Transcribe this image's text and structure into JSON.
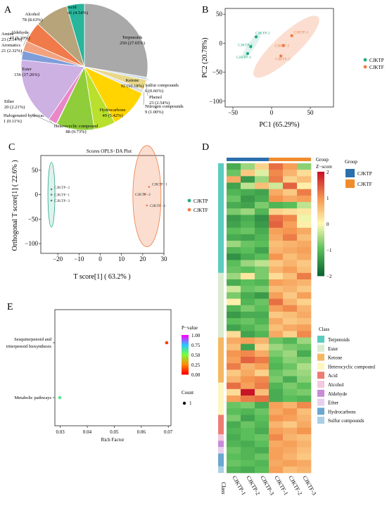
{
  "chart_data": [
    {
      "panel": "A",
      "type": "pie",
      "title": "",
      "slices": [
        {
          "label": "Terpenoids",
          "value_label": "250 (27.65%)",
          "value": 27.65,
          "color": "#a9a9a9"
        },
        {
          "label": "Sulfur compounds",
          "value_label": "6 (0.66%)",
          "value": 0.66,
          "color": "#c9dbe6"
        },
        {
          "label": "Phenol",
          "value_label": "23 (2.54%)",
          "value": 2.54,
          "color": "#e8d88a"
        },
        {
          "label": "Nitrogen compounds",
          "value_label": "9 (1.00%)",
          "value": 1.0,
          "color": "#e0e0e0"
        },
        {
          "label": "Ketone",
          "value_label": "92 (10.18%)",
          "value": 10.18,
          "color": "#ffd400"
        },
        {
          "label": "Hydrocarbons",
          "value_label": "49 (5.42%)",
          "value": 5.42,
          "color": "#b8e02c"
        },
        {
          "label": "Heterocyclic compound",
          "value_label": "88 (9.73%)",
          "value": 9.73,
          "color": "#8fcd3a"
        },
        {
          "label": "Halogenated hydrocarbons",
          "value_label": "1 (0.11%)",
          "value": 0.11,
          "color": "#6f8fa8"
        },
        {
          "label": "Ether",
          "value_label": "20 (2.21%)",
          "value": 2.21,
          "color": "#e987c8"
        },
        {
          "label": "Ester",
          "value_label": "156 (17.26%)",
          "value": 17.26,
          "color": "#cdb1e3"
        },
        {
          "label": "Aromatics",
          "value_label": "21 (2.32%)",
          "value": 2.32,
          "color": "#7f9dd9"
        },
        {
          "label": "Amine",
          "value_label": "23 (2.54%)",
          "value": 2.54,
          "color": "#f2a27e"
        },
        {
          "label": "Aldehyde",
          "value_label": "47 (5.20%)",
          "value": 5.2,
          "color": "#f07a4a"
        },
        {
          "label": "Alcohol",
          "value_label": "78 (8.63%)",
          "value": 8.63,
          "color": "#b7a47a"
        },
        {
          "label": "Acid",
          "value_label": "41 (4.54%)",
          "value": 4.54,
          "color": "#27b59c"
        }
      ]
    },
    {
      "panel": "B",
      "type": "scatter",
      "xlabel": "PC1 (65.29%)",
      "ylabel": "PC2 (20.78%)",
      "xlim": [
        -60,
        80
      ],
      "ylim": [
        -110,
        60
      ],
      "xticks": [
        -50,
        0,
        50
      ],
      "yticks": [
        50,
        0,
        -50,
        -100
      ],
      "series": [
        {
          "name": "CJKTP",
          "color": "#26a884",
          "points": [
            {
              "label": "CJKTP-1",
              "x": -27,
              "y": -6
            },
            {
              "label": "CJKTP-2",
              "x": -20,
              "y": 11
            },
            {
              "label": "CJKTP-3",
              "x": -31,
              "y": -18
            }
          ]
        },
        {
          "name": "CJKTF",
          "color": "#ee7d45",
          "points": [
            {
              "label": "CJKTF-1",
              "x": 26,
              "y": 13
            },
            {
              "label": "CJKTF-2",
              "x": 15,
              "y": -4
            },
            {
              "label": "CJKTF-3",
              "x": 12,
              "y": -22
            }
          ]
        }
      ]
    },
    {
      "panel": "C",
      "type": "scatter",
      "title": "Scores OPLS−DA Plot",
      "xlabel": "T score[1] ( 63.2% )",
      "ylabel": "Orthogonal T score[1] ( 22.6% )",
      "xlim": [
        -28,
        30
      ],
      "ylim": [
        -120,
        80
      ],
      "xticks": [
        -20,
        -10,
        0,
        10,
        20,
        30
      ],
      "yticks": [
        50,
        0,
        -50,
        -100
      ],
      "series": [
        {
          "name": "CJKTP",
          "color": "#26a884",
          "points": [
            {
              "label": "CJKTP−2",
              "x": -23,
              "y": 11
            },
            {
              "label": "CJKTP−1",
              "x": -23,
              "y": 0
            },
            {
              "label": "CJKTP−3",
              "x": -23,
              "y": -12
            }
          ]
        },
        {
          "name": "CJKTF",
          "color": "#ee7d45",
          "points": [
            {
              "label": "CJKTF−1",
              "x": 23,
              "y": 16
            },
            {
              "label": "CJKTF−2",
              "x": 21,
              "y": 1
            },
            {
              "label": "CJKTF−3",
              "x": 22,
              "y": -22
            }
          ]
        }
      ]
    },
    {
      "panel": "D",
      "type": "heatmap",
      "columns": [
        "CJKTP-1",
        "CJKTP-2",
        "CJKTP-3",
        "CJKTF-1",
        "CJKTF-2",
        "CJKTF-3"
      ],
      "column_axis_label": "Class",
      "group_title": "Group",
      "group_legend": [
        {
          "name": "CJKTP",
          "color": "#2a6fae"
        },
        {
          "name": "CJKTF",
          "color": "#f08c2b"
        }
      ],
      "zscore_title": "Z−score",
      "zscore_ticks": [
        "2",
        "1",
        "0",
        "−1",
        "−2"
      ],
      "class_title": "Class",
      "classes": [
        {
          "name": "Terpenoids",
          "color": "#5ccbc0",
          "rows": 17
        },
        {
          "name": "Ester",
          "color": "#d9ecd0",
          "rows": 10
        },
        {
          "name": "Ketone",
          "color": "#f5b862",
          "rows": 7
        },
        {
          "name": "Heterocyclic compound",
          "color": "#fdf6c0",
          "rows": 5
        },
        {
          "name": "Acid",
          "color": "#ee7c74",
          "rows": 3
        },
        {
          "name": "Alcohol",
          "color": "#f2c9dd",
          "rows": 1
        },
        {
          "name": "Aldehyde",
          "color": "#c98bd8",
          "rows": 1
        },
        {
          "name": "Ether",
          "color": "#e8d0ee",
          "rows": 1
        },
        {
          "name": "Hydrocarbons",
          "color": "#6aa8cf",
          "rows": 2
        },
        {
          "name": "Sulfur compounds",
          "color": "#aacfe6",
          "rows": 1
        }
      ],
      "values": [
        [
          -1.2,
          -0.6,
          0.4,
          1.3,
          0.9,
          -0.7
        ],
        [
          -0.9,
          0.5,
          -0.2,
          1.1,
          0.7,
          0.3
        ],
        [
          0.8,
          -1.4,
          -0.6,
          1.2,
          0.4,
          0.6
        ],
        [
          -1.3,
          -0.4,
          0.6,
          -0.3,
          1.4,
          0.1
        ],
        [
          -1.1,
          -1.2,
          -1.3,
          0.8,
          0.5,
          1.2
        ],
        [
          -0.9,
          -1.4,
          -1.2,
          1.0,
          0.8,
          0.9
        ],
        [
          -1.2,
          -1.3,
          -0.8,
          -1.1,
          -1.0,
          -0.4
        ],
        [
          -0.8,
          -0.6,
          -1.1,
          0.4,
          0.3,
          0.2
        ],
        [
          -1.4,
          -1.2,
          -1.5,
          1.3,
          1.1,
          -0.1
        ],
        [
          -1.3,
          -1.1,
          -1.4,
          1.4,
          0.9,
          0.1
        ],
        [
          -1.0,
          -0.9,
          -1.2,
          0.9,
          1.0,
          0.8
        ],
        [
          -1.2,
          -1.3,
          -1.1,
          0.8,
          1.2,
          0.6
        ],
        [
          -0.6,
          -0.9,
          -1.0,
          0.6,
          0.7,
          0.8
        ],
        [
          -1.1,
          -1.0,
          -1.3,
          0.7,
          0.8,
          0.9
        ],
        [
          -1.5,
          -1.2,
          -1.0,
          1.0,
          0.6,
          0.8
        ],
        [
          -1.0,
          -0.6,
          -0.4,
          0.5,
          0.7,
          0.5
        ],
        [
          -0.9,
          -1.0,
          -0.8,
          0.7,
          0.9,
          0.6
        ],
        [
          -0.6,
          0.2,
          -0.8,
          0.3,
          0.6,
          1.2
        ],
        [
          -1.2,
          -1.0,
          -1.1,
          0.9,
          0.8,
          0.7
        ],
        [
          -0.3,
          -0.9,
          -0.8,
          0.6,
          0.7,
          0.5
        ],
        [
          -0.8,
          -1.2,
          -1.4,
          0.9,
          0.5,
          0.9
        ],
        [
          0.1,
          -1.1,
          -0.9,
          1.3,
          0.7,
          0.4
        ],
        [
          -1.1,
          -0.8,
          -1.0,
          0.9,
          1.1,
          0.7
        ],
        [
          -1.4,
          -1.2,
          -1.2,
          0.5,
          0.6,
          0.8
        ],
        [
          -1.0,
          -0.9,
          -1.1,
          0.8,
          0.5,
          0.6
        ],
        [
          -1.3,
          -1.1,
          -0.9,
          0.6,
          0.8,
          0.9
        ],
        [
          0.3,
          -1.3,
          -1.1,
          0.8,
          0.4,
          1.1
        ],
        [
          0.8,
          0.9,
          0.7,
          -0.9,
          -1.1,
          -0.6
        ],
        [
          0.6,
          -1.3,
          0.4,
          -0.6,
          -0.8,
          -0.9
        ],
        [
          1.0,
          1.1,
          0.8,
          -0.8,
          -0.6,
          -1.2
        ],
        [
          0.9,
          1.4,
          1.2,
          -1.0,
          -0.7,
          -0.8
        ],
        [
          1.2,
          0.7,
          0.9,
          -1.1,
          -0.9,
          -0.5
        ],
        [
          0.5,
          0.8,
          0.4,
          -0.9,
          -0.7,
          -0.6
        ],
        [
          0.7,
          1.0,
          1.1,
          -0.8,
          -1.2,
          -0.7
        ],
        [
          1.3,
          0.9,
          1.2,
          -1.1,
          -0.8,
          -1.0
        ],
        [
          0.3,
          2.0,
          0.6,
          -1.2,
          -0.9,
          -0.8
        ],
        [
          0.9,
          1.2,
          1.3,
          -1.2,
          -1.0,
          -1.1
        ],
        [
          -0.9,
          -0.8,
          -1.2,
          0.9,
          0.7,
          1.1
        ],
        [
          -1.0,
          -1.1,
          -0.9,
          0.8,
          1.0,
          0.6
        ],
        [
          -0.8,
          -1.3,
          -1.0,
          1.0,
          0.9,
          0.7
        ],
        [
          -1.2,
          -0.9,
          -1.1,
          0.7,
          0.5,
          0.8
        ],
        [
          -1.1,
          -1.0,
          -1.2,
          0.9,
          0.8,
          1.0
        ],
        [
          -1.2,
          -1.0,
          -0.9,
          1.1,
          0.7,
          0.6
        ],
        [
          -1.1,
          -1.2,
          -1.0,
          0.8,
          0.9,
          0.7
        ],
        [
          -0.9,
          -1.1,
          -1.2,
          0.9,
          0.8,
          0.6
        ],
        [
          -1.0,
          -1.1,
          -0.9,
          0.9,
          0.7,
          0.5
        ],
        [
          -0.9,
          -1.0,
          -1.1,
          0.8,
          0.9,
          0.8
        ],
        [
          -1.1,
          -1.2,
          -1.0,
          0.9,
          0.6,
          0.7
        ]
      ]
    },
    {
      "panel": "E",
      "type": "scatter",
      "xlabel": "Rich Factor",
      "xlim": [
        0.028,
        0.071
      ],
      "xticks": [
        0.03,
        0.04,
        0.05,
        0.06,
        0.07
      ],
      "categories": [
        "Sesquiterpenoid and triterpenoid biosynthesis",
        "Metabolic pathways"
      ],
      "points": [
        {
          "category": "Sesquiterpenoid and triterpenoid biosynthesis",
          "x": 0.0694,
          "p_value": 0.1,
          "count": 1
        },
        {
          "category": "Metabolic pathways",
          "x": 0.0298,
          "p_value": 0.6,
          "count": 1
        }
      ],
      "pvalue_title": "P−value",
      "pvalue_ticks": [
        "1.00",
        "0.75",
        "0.50",
        "0.25",
        "0.00"
      ],
      "count_title": "Count",
      "count_value": "1"
    }
  ],
  "panel_letters": [
    "A",
    "B",
    "C",
    "D",
    "E"
  ],
  "e_category_lines": [
    [
      "Sesquiterpenoid and",
      "triterpenoid biosynthesis"
    ],
    [
      "Metabolic pathways"
    ]
  ]
}
